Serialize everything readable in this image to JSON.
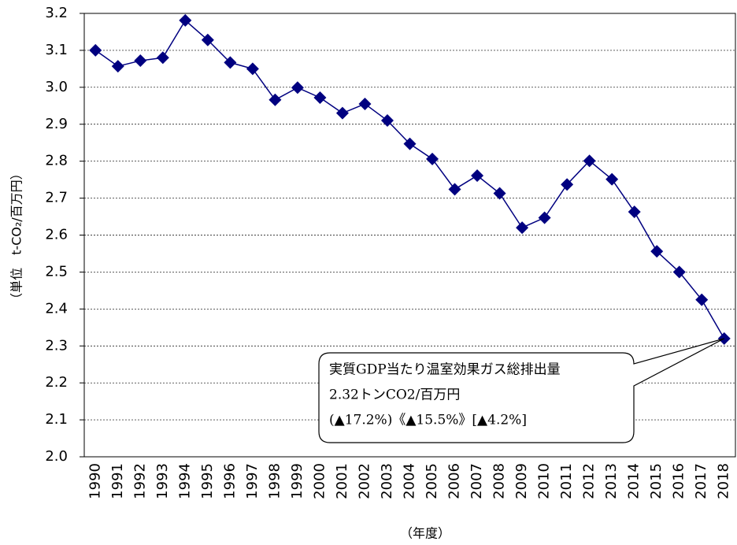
{
  "chart_data": {
    "type": "line",
    "y_label": "（単位　t-CO₂/百万円）",
    "x_label": "（年度）",
    "categories": [
      "1990",
      "1991",
      "1992",
      "1993",
      "1994",
      "1995",
      "1996",
      "1997",
      "1998",
      "1999",
      "2000",
      "2001",
      "2002",
      "2003",
      "2004",
      "2005",
      "2006",
      "2007",
      "2008",
      "2009",
      "2010",
      "2011",
      "2012",
      "2013",
      "2014",
      "2015",
      "2016",
      "2017",
      "2018"
    ],
    "series": [
      {
        "color": "#000080",
        "values": [
          3.1,
          3.057,
          3.072,
          3.08,
          3.181,
          3.128,
          3.067,
          3.05,
          2.966,
          2.999,
          2.972,
          2.93,
          2.955,
          2.91,
          2.847,
          2.806,
          2.724,
          2.761,
          2.713,
          2.62,
          2.647,
          2.737,
          2.801,
          2.751,
          2.663,
          2.556,
          2.5,
          2.425,
          2.32
        ]
      }
    ],
    "ylim": [
      2.0,
      3.2
    ],
    "yticks": [
      {
        "value": 2.0,
        "label": "2.0"
      },
      2.1,
      2.2,
      2.3,
      2.4,
      2.5,
      2.6,
      2.7,
      2.8,
      2.9,
      {
        "value": 3.0,
        "label": "3.0"
      },
      3.1,
      3.2
    ],
    "grid": true,
    "annotation": [
      "実質GDP当たり温室効果ガス総排出量",
      "2.32トンCO2/百万円",
      "(▲17.2%)《▲15.5%》[▲4.2%]"
    ]
  }
}
